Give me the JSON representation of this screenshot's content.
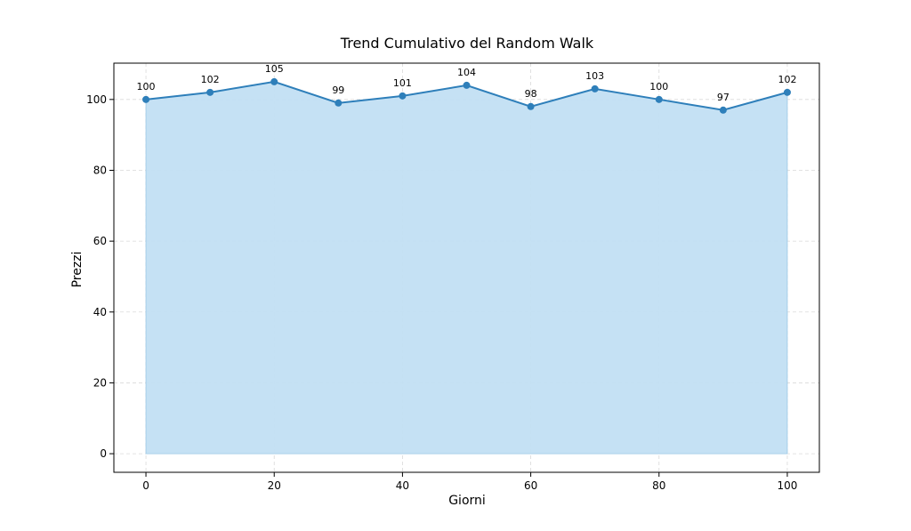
{
  "chart_data": {
    "type": "area",
    "title": "Trend Cumulativo del Random Walk",
    "xlabel": "Giorni",
    "ylabel": "Prezzi",
    "x": [
      0,
      10,
      20,
      30,
      40,
      50,
      60,
      70,
      80,
      90,
      100
    ],
    "series": [
      {
        "values": [
          100,
          102,
          105,
          99,
          101,
          104,
          98,
          103,
          100,
          97,
          102
        ],
        "labels": [
          "100",
          "102",
          "105",
          "99",
          "101",
          "104",
          "98",
          "103",
          "100",
          "97",
          "102"
        ]
      }
    ],
    "xlim": [
      -5,
      105
    ],
    "ylim": [
      -5.25,
      110.25
    ],
    "xticks": [
      0,
      20,
      40,
      60,
      80,
      100
    ],
    "yticks": [
      0,
      20,
      40,
      60,
      80,
      100
    ],
    "xtick_labels": [
      "0",
      "20",
      "40",
      "60",
      "80",
      "100"
    ],
    "ytick_labels": [
      "0",
      "20",
      "40",
      "60",
      "80",
      "100"
    ],
    "grid": true,
    "grid_style": "dashed",
    "colors": {
      "line": "#2e7fba",
      "marker": "#2e7fba",
      "fill": "#c2dff3",
      "grid": "#d9d9d9",
      "axes": "#000000"
    }
  }
}
